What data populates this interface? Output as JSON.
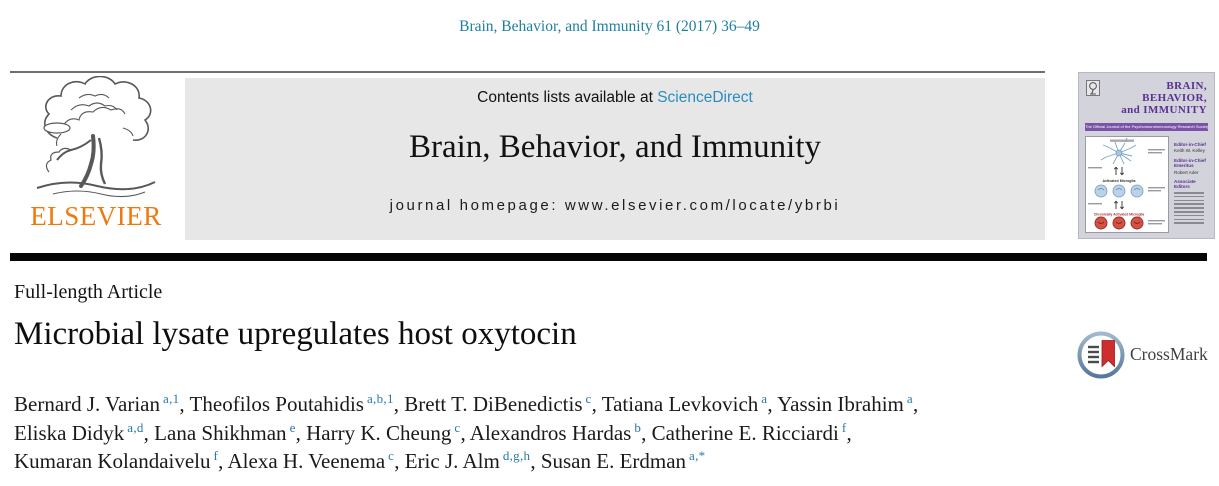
{
  "page": {
    "citation": "Brain, Behavior, and Immunity 61 (2017) 36–49"
  },
  "header": {
    "contents_prefix": "Contents lists available at ",
    "sciencedirect": "ScienceDirect",
    "journal_title": "Brain, Behavior, and Immunity",
    "homepage_line": "journal homepage: www.elsevier.com/locate/ybrbi",
    "elsevier_wordmark": "ELSEVIER"
  },
  "cover": {
    "title_lines": [
      "BRAIN,",
      "BEHAVIOR,",
      "and IMMUNITY"
    ],
    "banner_text": "The Official Journal of the Psychoneuroimmunology Research Society",
    "labels": {
      "activated": "Activated Microglia",
      "chronic": "Chronically Activated Microglia"
    },
    "editors": [
      {
        "role": "Editor-in-Chief",
        "name": "Keith W. Kelley"
      },
      {
        "role": "Editor-in-Chief Emeritus",
        "name": "Robert Ader"
      }
    ],
    "associate_editors_label": "Associate Editors"
  },
  "article": {
    "type_label": "Full-length Article",
    "title": "Microbial lysate upregulates host oxytocin",
    "crossmark_label": "CrossMark",
    "author_lines": [
      [
        {
          "name": "Bernard J. Varian",
          "sup": "a,1"
        },
        {
          "name": "Theofilos Poutahidis",
          "sup": "a,b,1"
        },
        {
          "name": "Brett T. DiBenedictis",
          "sup": "c"
        },
        {
          "name": "Tatiana Levkovich",
          "sup": "a"
        },
        {
          "name": "Yassin Ibrahim",
          "sup": "a"
        }
      ],
      [
        {
          "name": "Eliska Didyk",
          "sup": "a,d"
        },
        {
          "name": "Lana Shikhman",
          "sup": "e"
        },
        {
          "name": "Harry K. Cheung",
          "sup": "c"
        },
        {
          "name": "Alexandros Hardas",
          "sup": "b"
        },
        {
          "name": "Catherine E. Ricciardi",
          "sup": "f"
        }
      ],
      [
        {
          "name": "Kumaran Kolandaivelu",
          "sup": "f"
        },
        {
          "name": "Alexa H. Veenema",
          "sup": "c"
        },
        {
          "name": "Eric J. Alm",
          "sup": "d,g,h"
        },
        {
          "name": "Susan E. Erdman",
          "sup": "a,*"
        }
      ]
    ]
  },
  "colors": {
    "citation_teal": "#1f7f9f",
    "link_blue": "#2b8cbe",
    "sup_blue": "#2878ab",
    "elsevier_orange": "#ef790e",
    "cover_purple": "#5b3191",
    "crossmark_red": "#cf2e2e"
  }
}
